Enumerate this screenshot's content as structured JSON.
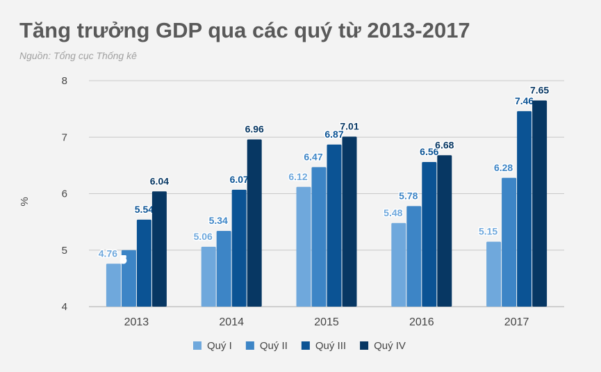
{
  "chart_data": {
    "type": "bar",
    "title": "Tăng trưởng GDP qua các quý từ 2013-2017",
    "subtitle": "Nguồn: Tổng cục Thống kê",
    "xlabel": "",
    "ylabel": "%",
    "ylim": [
      4,
      8
    ],
    "yticks": [
      "4",
      "5",
      "6",
      "7",
      "8"
    ],
    "grid": true,
    "legend_position": "bottom",
    "categories": [
      "2013",
      "2014",
      "2015",
      "2016",
      "2017"
    ],
    "series": [
      {
        "name": "Quý I",
        "color": "#6fa8dc",
        "values": [
          4.76,
          5.06,
          6.12,
          5.48,
          5.15
        ],
        "labels": [
          "4.76",
          "5.06",
          "6.12",
          "5.48",
          "5.15"
        ]
      },
      {
        "name": "Quý II",
        "color": "#3d85c6",
        "values": [
          5,
          5.34,
          6.47,
          5.78,
          6.28
        ],
        "labels": [
          "5",
          "5.34",
          "6.47",
          "5.78",
          "6.28"
        ]
      },
      {
        "name": "Quý III",
        "color": "#0b5394",
        "values": [
          5.54,
          6.07,
          6.87,
          6.56,
          7.46
        ],
        "labels": [
          "5.54",
          "6.07",
          "6.87",
          "6.56",
          "7.46"
        ]
      },
      {
        "name": "Quý IV",
        "color": "#073763",
        "values": [
          6.04,
          6.96,
          7.01,
          6.68,
          7.65
        ],
        "labels": [
          "6.04",
          "6.96",
          "7.01",
          "6.68",
          "7.65"
        ]
      }
    ]
  }
}
